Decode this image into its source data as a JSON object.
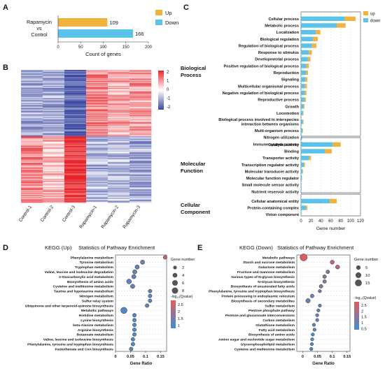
{
  "colors": {
    "up": "#f2b33d",
    "down": "#5bc3ea",
    "heat_high": "#e7242a",
    "heat_mid": "#ffffff",
    "heat_low": "#3d4aa3",
    "dot_edge": "#222222"
  },
  "panels": {
    "a": "A",
    "b": "B",
    "c": "C",
    "d": "D",
    "e": "E"
  },
  "chart_data": [
    {
      "id": "A",
      "type": "bar",
      "orientation": "horizontal",
      "category_label": [
        "Rapamycin",
        "vs",
        "Control"
      ],
      "xlabel": "Count of genes",
      "xlim": [
        0,
        200
      ],
      "xticks": [
        "0",
        "50",
        "100",
        "150",
        "200"
      ],
      "legend": [
        "Up",
        "Down"
      ],
      "series": [
        {
          "name": "Up",
          "value": 109,
          "label": "109"
        },
        {
          "name": "Down",
          "value": 166,
          "label": "166"
        }
      ]
    },
    {
      "id": "B",
      "type": "heatmap",
      "columns": [
        "Control-1",
        "Control-2",
        "Control-3",
        "Rapamycin-1",
        "Rapamycin-2",
        "Rapamycin-3"
      ],
      "scale": {
        "min": -2,
        "max": 2,
        "ticks": [
          "2",
          "1",
          "0",
          "-1",
          "-2"
        ]
      },
      "blocks": [
        {
          "rows": 0.5,
          "values": [
            -0.9,
            -0.9,
            -1.6,
            1.1,
            0.8,
            0.9
          ]
        },
        {
          "rows": 0.5,
          "values": [
            1.1,
            0.6,
            1.8,
            -0.8,
            -0.7,
            -0.9
          ]
        }
      ]
    },
    {
      "id": "C",
      "type": "bar",
      "orientation": "horizontal",
      "stacked": true,
      "xlabel": "Gene number",
      "xlim": [
        0,
        120
      ],
      "xticks": [
        "0",
        "20",
        "40",
        "60",
        "80",
        "100",
        "120"
      ],
      "legend": [
        "up",
        "down"
      ],
      "groups": [
        {
          "name": "Biological Process",
          "categories": [
            "Cellular process",
            "Metabolic process",
            "Localization",
            "Biological regulation",
            "Regulation of biological process",
            "Response to stimulus",
            "Developmental process",
            "Positive regulation of biological process",
            "Reproduction",
            "Signaling",
            "Multicellular organismal process",
            "Negative regulation of biological process",
            "Reproductive process",
            "Growth",
            "Locomotion",
            "Biological process involved in interspecies interaction between organisms",
            "Multi-organism process",
            "Nitrogen utilization",
            "Immune system process"
          ],
          "down": [
            88,
            72,
            30,
            24,
            22,
            16,
            14,
            11,
            10,
            9,
            8,
            8,
            7,
            5,
            4,
            4,
            3,
            2,
            2
          ],
          "up": [
            22,
            18,
            9,
            10,
            9,
            6,
            5,
            5,
            4,
            4,
            4,
            3,
            3,
            2,
            1,
            1,
            1,
            0,
            0
          ]
        },
        {
          "name": "Molecular Function",
          "categories": [
            "Catalytic activity",
            "Binding",
            "Transporter activity",
            "Transcription regulator activity",
            "Molecular transducer activity",
            "Molecular function regulator",
            "Small molecule sensor activity",
            "Nutrient reservoir activity"
          ],
          "down": [
            64,
            48,
            16,
            6,
            3,
            2,
            1,
            1
          ],
          "up": [
            16,
            14,
            4,
            2,
            1,
            0,
            0,
            0
          ]
        },
        {
          "name": "Cellular Component",
          "categories": [
            "Cellular anatomical entity",
            "Protein-containing complex",
            "Virion component"
          ],
          "down": [
            58,
            10,
            1
          ],
          "up": [
            14,
            3,
            0
          ]
        }
      ]
    },
    {
      "id": "D",
      "type": "scatter",
      "title": "KEGG (Up)",
      "subtitle": "Statistics of Pathway Enrichment",
      "xlabel": "Gene Ratio",
      "xlim": [
        0,
        0.17
      ],
      "xticks": [
        "0",
        "0.05",
        "0.1",
        "0.15"
      ],
      "size_legend": {
        "title": "Gene number",
        "values": [
          "2",
          "4",
          "6",
          "8"
        ]
      },
      "color_legend": {
        "ticks": [
          "2.5",
          "2",
          "1.5",
          "1"
        ]
      },
      "categories": [
        "Phenylalanine metabolism",
        "Tyrosine metabolism",
        "Tryptophan metabolism",
        "Valine, leucine and isoleucine degradation",
        "2-Oxocarboxylic acid metabolism",
        "Biosynthesis of amino acids",
        "Cysteine and methionine metabolism",
        "Taurine and hypotaurine metabolism",
        "Nitrogen metabolism",
        "Sulfur relay system",
        "Ubiquinone and other terpenoid-quinone biosynthesis",
        "Metabolic pathways",
        "Histidine metabolism",
        "Lysine biosynthesis",
        "beta-Alanine metabolism",
        "Arginine biosynthesis",
        "Butanoate metabolism",
        "Valine, leucine and isoleucine biosynthesis",
        "Phenylalanine, tyrosine and tryptophan biosynthesis",
        "Pantothenate and CoA biosynthesis"
      ],
      "x": [
        0.165,
        0.09,
        0.072,
        0.064,
        0.061,
        0.045,
        0.057,
        0.115,
        0.115,
        0.115,
        0.105,
        0.028,
        0.063,
        0.063,
        0.063,
        0.063,
        0.063,
        0.058,
        0.058,
        0.052
      ],
      "size": [
        2,
        3,
        3,
        3,
        3,
        4,
        3,
        2,
        2,
        2,
        2,
        8,
        2,
        2,
        2,
        2,
        2,
        2,
        2,
        2
      ],
      "qvalue": [
        2.7,
        1.4,
        1.4,
        1.3,
        1.3,
        1.2,
        1.3,
        1.2,
        1.2,
        1.2,
        1.2,
        1.0,
        1.0,
        1.0,
        1.0,
        1.0,
        1.0,
        1.0,
        1.0,
        1.0
      ]
    },
    {
      "id": "E",
      "type": "scatter",
      "title": "KEGG (Down)",
      "subtitle": "Statistics of Pathway Enrichment",
      "xlabel": "Gene Ratio",
      "xlim": [
        -0.02,
        0.16
      ],
      "xticks": [
        "0",
        "0.05",
        "0.1",
        "0.15"
      ],
      "size_legend": {
        "title": "Gene number",
        "values": [
          "5",
          "10",
          "15"
        ]
      },
      "color_legend": {
        "ticks": [
          "2.5",
          "2",
          "1.5",
          "1",
          "0.5"
        ]
      },
      "categories": [
        "Metabolic pathways",
        "Starch and sucrose metabolism",
        "Galactose metabolism",
        "Fructose and mannose metabolism",
        "Various types of N-glycan biosynthesis",
        "N-Glycan biosynthesis",
        "Biosynthesis of unsaturated fatty acids",
        "Phenylalanine, tyrosine and tryptophan biosynthesis",
        "Protein processing in endoplasmic reticulum",
        "Biosynthesis of secondary metabolites",
        "Sulfur metabolism",
        "Pentose phosphate pathway",
        "Pentose and glucuronate interconversions",
        "Carbon metabolism",
        "Glutathione metabolism",
        "Fatty acid metabolism",
        "Biosynthesis of amino acids",
        "Amino sugar and nucleotide sugar metabolism",
        "Glycerophospholipid metabolism",
        "Cysteine and methionine metabolism"
      ],
      "x": [
        0.003,
        0.1,
        0.118,
        0.085,
        0.074,
        0.074,
        0.062,
        0.058,
        0.032,
        0.018,
        0.058,
        0.053,
        0.049,
        0.049,
        0.038,
        0.04,
        0.034,
        0.032,
        0.031,
        0.029
      ],
      "size": [
        16,
        4,
        4,
        3,
        3,
        3,
        3,
        2,
        3,
        5,
        2,
        2,
        2,
        2,
        2,
        2,
        2,
        2,
        2,
        2
      ],
      "qvalue": [
        2.8,
        2.4,
        2.2,
        1.6,
        1.5,
        1.5,
        1.4,
        1.2,
        1.1,
        1.0,
        1.0,
        0.9,
        0.9,
        0.9,
        0.8,
        0.8,
        0.7,
        0.7,
        0.6,
        0.6
      ]
    }
  ]
}
